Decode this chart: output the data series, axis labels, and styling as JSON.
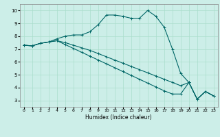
{
  "xlabel": "Humidex (Indice chaleur)",
  "background_color": "#cceee8",
  "grid_color": "#aaddcc",
  "line_color": "#006666",
  "xlim": [
    -0.5,
    23.5
  ],
  "ylim": [
    2.5,
    10.5
  ],
  "x_ticks": [
    0,
    1,
    2,
    3,
    4,
    5,
    6,
    7,
    8,
    9,
    10,
    11,
    12,
    13,
    14,
    15,
    16,
    17,
    18,
    19,
    20,
    21,
    22,
    23
  ],
  "y_ticks": [
    3,
    4,
    5,
    6,
    7,
    8,
    9,
    10
  ],
  "line1_x": [
    0,
    1,
    2,
    3,
    4,
    5,
    6,
    7,
    8,
    9,
    10,
    11,
    12,
    13,
    14,
    15,
    16,
    17,
    18,
    19,
    20,
    21,
    22,
    23
  ],
  "line1_y": [
    7.3,
    7.25,
    7.45,
    7.55,
    7.8,
    8.0,
    8.1,
    8.1,
    8.35,
    8.9,
    9.65,
    9.65,
    9.55,
    9.4,
    9.4,
    10.0,
    9.55,
    8.7,
    7.0,
    5.1,
    4.4,
    3.1,
    3.7,
    3.35
  ],
  "line2_x": [
    0,
    1,
    2,
    3,
    4,
    5,
    6,
    7,
    8,
    9,
    10,
    11,
    12,
    13,
    14,
    15,
    16,
    17,
    18,
    19,
    20,
    21,
    22,
    23
  ],
  "line2_y": [
    7.3,
    7.25,
    7.45,
    7.55,
    7.65,
    7.5,
    7.3,
    7.1,
    6.9,
    6.65,
    6.4,
    6.15,
    5.9,
    5.65,
    5.4,
    5.15,
    4.9,
    4.65,
    4.4,
    4.15,
    4.4,
    3.1,
    3.7,
    3.35
  ],
  "line3_x": [
    0,
    1,
    2,
    3,
    4,
    5,
    6,
    7,
    8,
    9,
    10,
    11,
    12,
    13,
    14,
    15,
    16,
    17,
    18,
    19,
    20,
    21,
    22,
    23
  ],
  "line3_y": [
    7.3,
    7.25,
    7.45,
    7.55,
    7.65,
    7.35,
    7.05,
    6.75,
    6.45,
    6.15,
    5.85,
    5.55,
    5.25,
    4.95,
    4.65,
    4.35,
    4.05,
    3.75,
    3.5,
    3.5,
    4.4,
    3.1,
    3.7,
    3.35
  ]
}
